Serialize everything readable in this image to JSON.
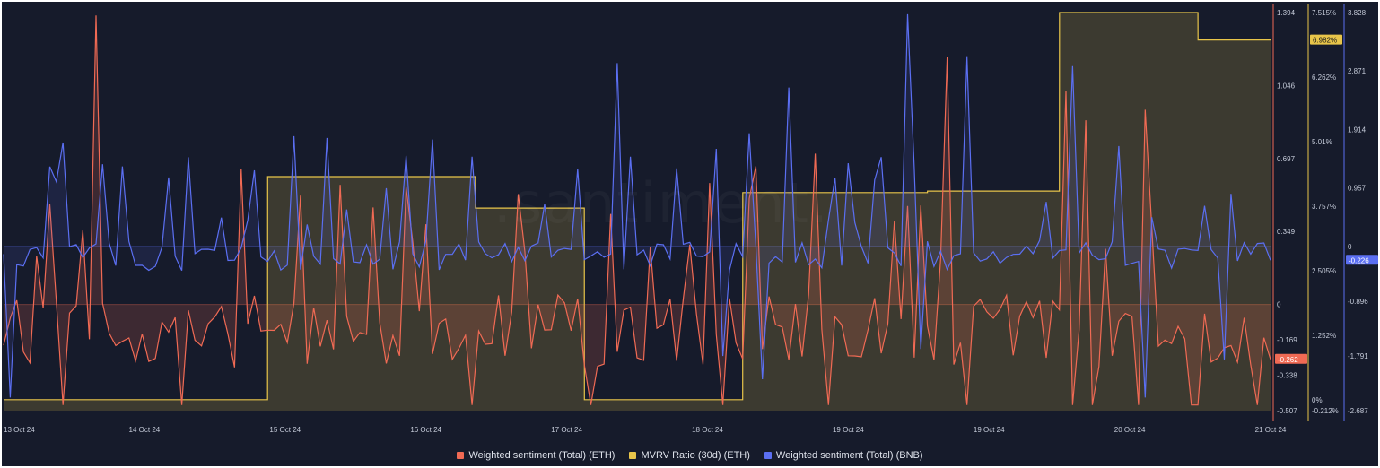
{
  "colors": {
    "background": "#161b2b",
    "eth_sentiment": "#f06a54",
    "mvrv": "#e8c54a",
    "bnb_sentiment": "#5b6ff2",
    "text": "#c5cbd9"
  },
  "watermark": ".santiment.",
  "chart_data": {
    "type": "line",
    "x_axis": {
      "type": "datetime",
      "start": "2024-10-13T00:00",
      "end": "2024-10-21T00:00",
      "tick_labels": [
        "13 Oct 24",
        "14 Oct 24",
        "15 Oct 24",
        "16 Oct 24",
        "17 Oct 24",
        "18 Oct 24",
        "19 Oct 24",
        "19 Oct 24",
        "20 Oct 24",
        "21 Oct 24"
      ]
    },
    "axes": {
      "eth_sentiment": {
        "min": -0.507,
        "max": 1.394,
        "ticks": [
          "1.394",
          "1.046",
          "0.697",
          "0.349",
          "0",
          "-0.169",
          "-0.338",
          "-0.507"
        ]
      },
      "mvrv": {
        "min": -0.212,
        "max": 7.515,
        "ticks": [
          "7.515%",
          "6.262%",
          "5.01%",
          "3.757%",
          "2.505%",
          "1.252%",
          "0%",
          "-0.212%"
        ]
      },
      "bnb_sentiment": {
        "min": -2.687,
        "max": 3.828,
        "ticks": [
          "3.828",
          "2.871",
          "1.914",
          "0.957",
          "0",
          "-0.896",
          "-1.791",
          "-2.687"
        ]
      }
    },
    "series": [
      {
        "name": "Weighted sentiment (Total) (ETH)",
        "key": "eth_sentiment",
        "style": "area-baseline",
        "last_value": "-0.262",
        "points": []
      },
      {
        "name": "MVRV Ratio (30d) (ETH)",
        "key": "mvrv",
        "style": "step-area",
        "last_value": "6.982%",
        "points": [
          [
            "2024-10-13T00:00",
            0.0
          ],
          [
            "2024-10-14T16:00",
            0.0
          ],
          [
            "2024-10-14T16:01",
            4.33
          ],
          [
            "2024-10-15T23:30",
            4.33
          ],
          [
            "2024-10-15T23:31",
            3.72
          ],
          [
            "2024-10-16T16:00",
            3.72
          ],
          [
            "2024-10-16T16:01",
            0.0
          ],
          [
            "2024-10-17T16:00",
            0.0
          ],
          [
            "2024-10-17T16:01",
            4.02
          ],
          [
            "2024-10-18T20:00",
            4.02
          ],
          [
            "2024-10-18T20:01",
            4.05
          ],
          [
            "2024-10-19T16:00",
            4.05
          ],
          [
            "2024-10-19T16:01",
            7.515
          ],
          [
            "2024-10-20T13:00",
            7.515
          ],
          [
            "2024-10-20T13:01",
            6.982
          ],
          [
            "2024-10-21T00:00",
            6.982
          ]
        ]
      },
      {
        "name": "Weighted sentiment (Total) (BNB)",
        "key": "bnb_sentiment",
        "style": "area-baseline",
        "last_value": "-0.226",
        "points": []
      }
    ]
  },
  "legend": {
    "items": [
      {
        "label": "Weighted sentiment (Total) (ETH)",
        "color": "#f06a54"
      },
      {
        "label": "MVRV Ratio (30d) (ETH)",
        "color": "#e8c54a"
      },
      {
        "label": "Weighted sentiment (Total) (BNB)",
        "color": "#5b6ff2"
      }
    ]
  }
}
